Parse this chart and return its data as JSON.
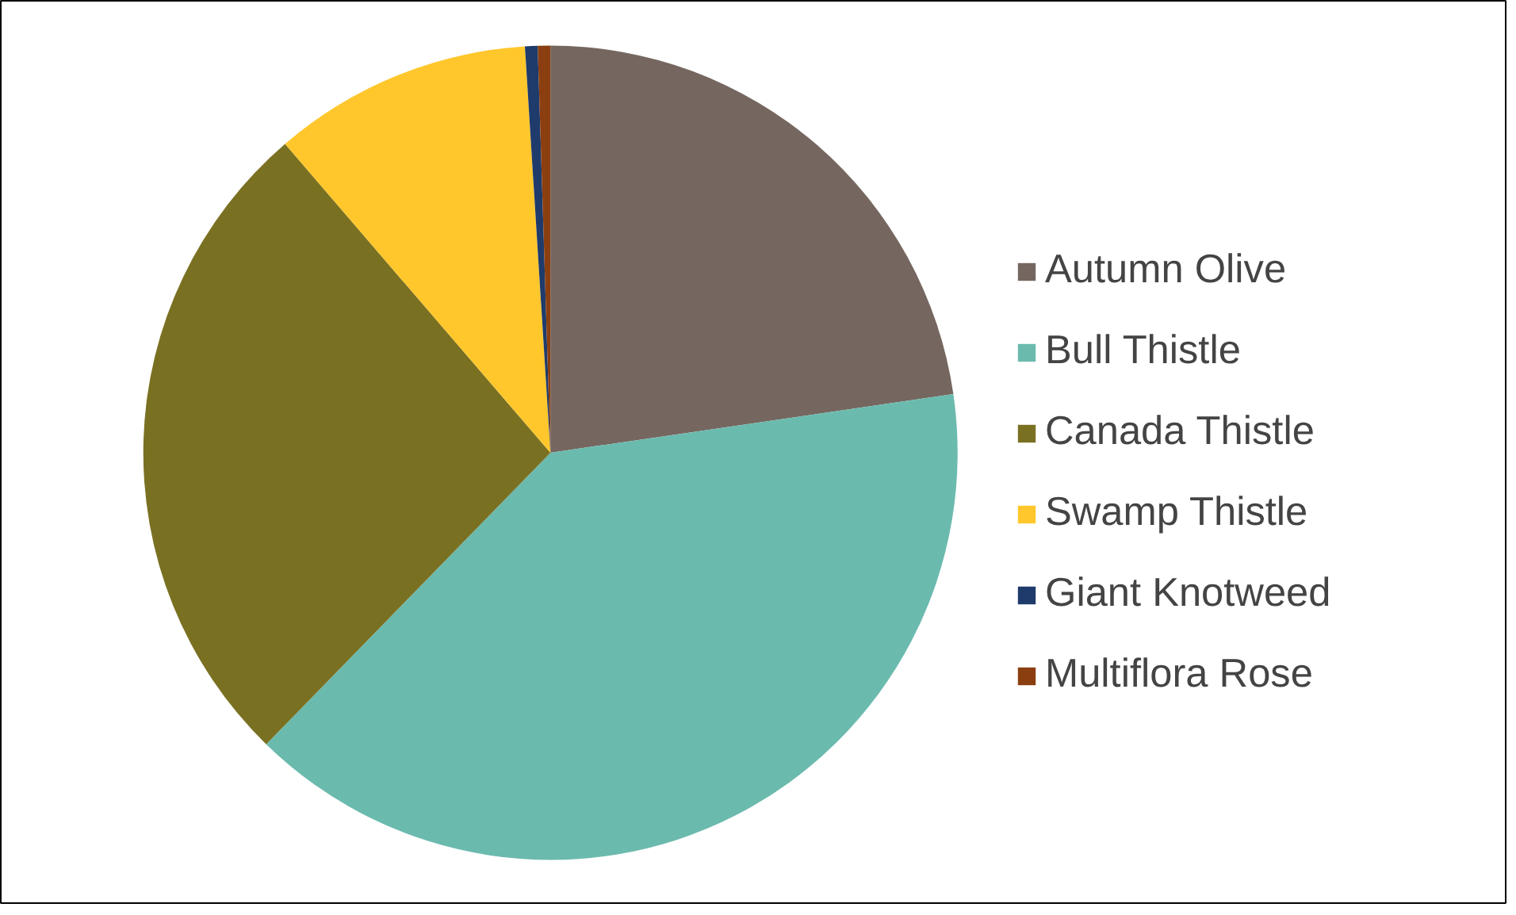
{
  "chart_data": {
    "type": "pie",
    "categories": [
      "Autumn Olive",
      "Bull Thistle",
      "Canada Thistle",
      "Swamp Thistle",
      "Giant Knotweed",
      "Multiflora Rose"
    ],
    "values": [
      22.7,
      39.6,
      26.4,
      10.3,
      0.5,
      0.5
    ],
    "colors": [
      "#756760",
      "#6bbaae",
      "#7a7022",
      "#ffc72c",
      "#1f3b6b",
      "#8b3f10"
    ],
    "legend": "right"
  }
}
